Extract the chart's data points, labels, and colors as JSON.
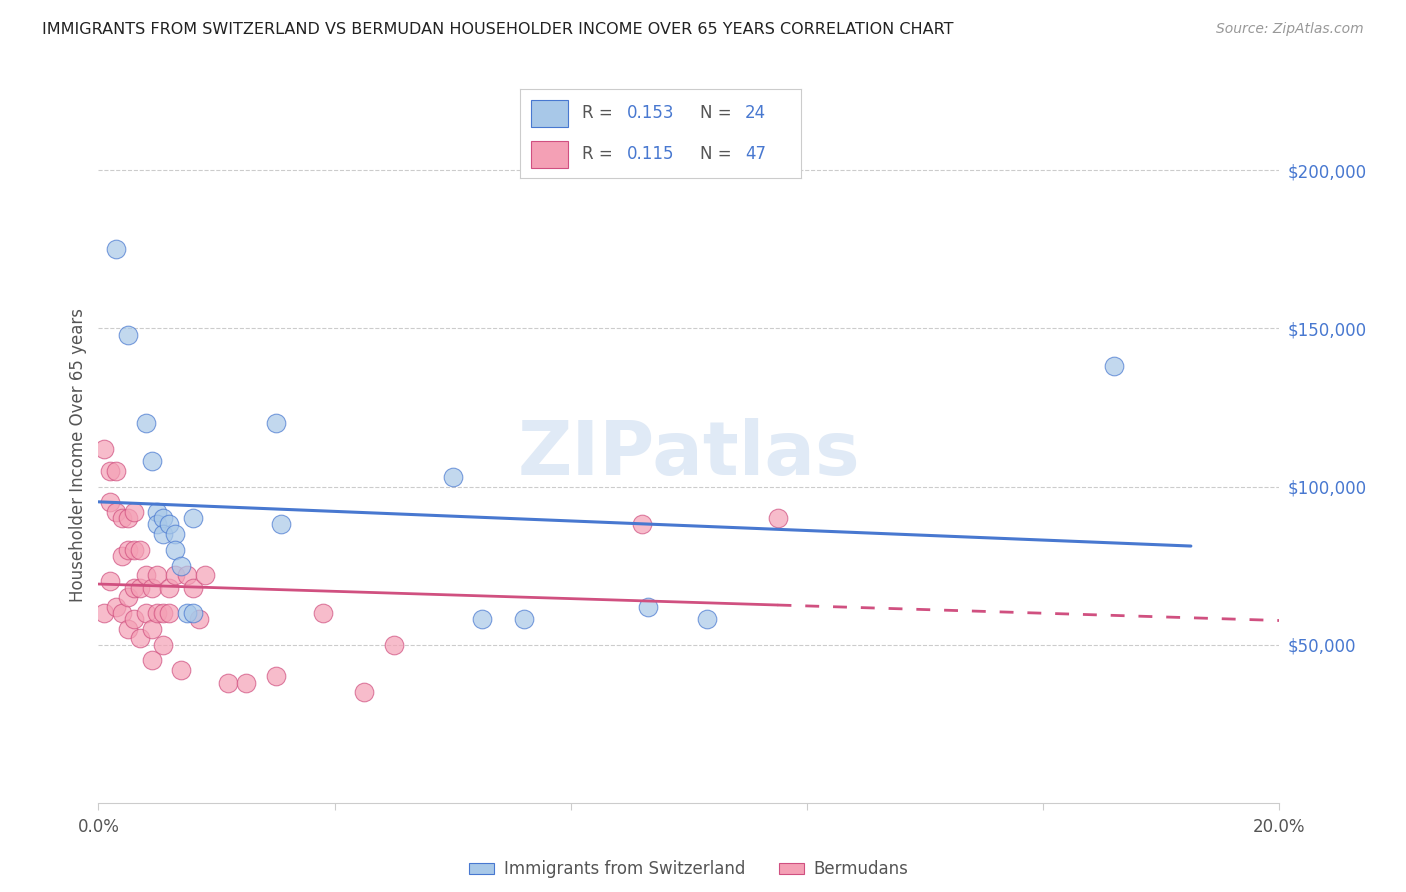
{
  "title": "IMMIGRANTS FROM SWITZERLAND VS BERMUDAN HOUSEHOLDER INCOME OVER 65 YEARS CORRELATION CHART",
  "source": "Source: ZipAtlas.com",
  "ylabel": "Householder Income Over 65 years",
  "watermark": "ZIPatlas",
  "xlim": [
    0.0,
    0.2
  ],
  "ylim": [
    0,
    220000
  ],
  "xticks": [
    0.0,
    0.04,
    0.08,
    0.12,
    0.16,
    0.2
  ],
  "xtick_labels": [
    "0.0%",
    "",
    "",
    "",
    "",
    "20.0%"
  ],
  "ytick_labels_right": [
    "$50,000",
    "$100,000",
    "$150,000",
    "$200,000"
  ],
  "ytick_vals_right": [
    50000,
    100000,
    150000,
    200000
  ],
  "blue_color": "#a8c8e8",
  "pink_color": "#f4a0b5",
  "line_blue": "#4878d0",
  "line_pink": "#d05080",
  "label1": "Immigrants from Switzerland",
  "label2": "Bermudans",
  "swiss_x": [
    0.003,
    0.005,
    0.008,
    0.009,
    0.01,
    0.01,
    0.011,
    0.011,
    0.012,
    0.013,
    0.013,
    0.014,
    0.015,
    0.016,
    0.016,
    0.03,
    0.031,
    0.06,
    0.065,
    0.072,
    0.093,
    0.103,
    0.172
  ],
  "swiss_y": [
    175000,
    148000,
    120000,
    108000,
    92000,
    88000,
    90000,
    85000,
    88000,
    85000,
    80000,
    75000,
    60000,
    60000,
    90000,
    120000,
    88000,
    103000,
    58000,
    58000,
    62000,
    58000,
    138000
  ],
  "bermuda_x": [
    0.001,
    0.001,
    0.002,
    0.002,
    0.002,
    0.003,
    0.003,
    0.003,
    0.004,
    0.004,
    0.004,
    0.005,
    0.005,
    0.005,
    0.005,
    0.006,
    0.006,
    0.006,
    0.006,
    0.007,
    0.007,
    0.007,
    0.008,
    0.008,
    0.009,
    0.009,
    0.009,
    0.01,
    0.01,
    0.011,
    0.011,
    0.012,
    0.012,
    0.013,
    0.014,
    0.015,
    0.016,
    0.017,
    0.018,
    0.022,
    0.025,
    0.03,
    0.038,
    0.045,
    0.05,
    0.092,
    0.115
  ],
  "bermuda_y": [
    112000,
    60000,
    105000,
    95000,
    70000,
    105000,
    92000,
    62000,
    90000,
    78000,
    60000,
    90000,
    80000,
    65000,
    55000,
    92000,
    80000,
    68000,
    58000,
    80000,
    68000,
    52000,
    72000,
    60000,
    68000,
    55000,
    45000,
    72000,
    60000,
    60000,
    50000,
    68000,
    60000,
    72000,
    42000,
    72000,
    68000,
    58000,
    72000,
    38000,
    38000,
    40000,
    60000,
    35000,
    50000,
    88000,
    90000
  ]
}
